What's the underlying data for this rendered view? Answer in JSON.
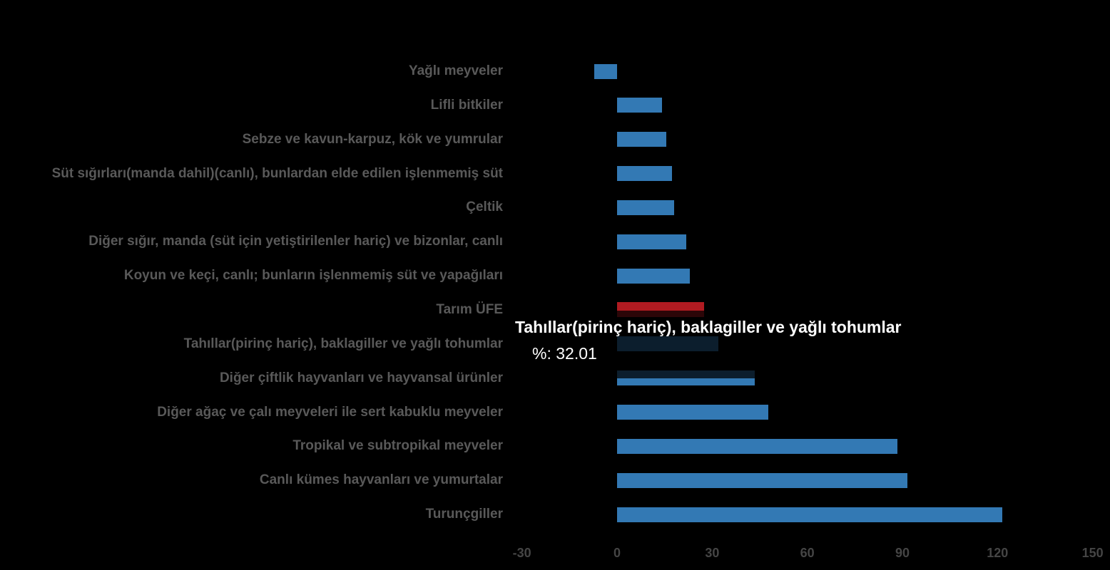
{
  "chart_data": {
    "type": "bar",
    "orientation": "horizontal",
    "title": "",
    "xlabel": "",
    "ylabel": "",
    "xlim": [
      -30,
      150
    ],
    "x_ticks": [
      "-30",
      "0",
      "30",
      "60",
      "90",
      "120",
      "150"
    ],
    "x_tick_values": [
      -30,
      0,
      30,
      60,
      90,
      120,
      150
    ],
    "grid": false,
    "legend": false,
    "categories": [
      "Yağlı meyveler",
      "Lifli bitkiler",
      "Sebze ve kavun-karpuz, kök ve yumrular",
      "Süt sığırları(manda dahil)(canlı), bunlardan elde edilen işlenmemiş süt",
      "Çeltik",
      "Diğer sığır, manda (süt için yetiştirilenler hariç) ve bizonlar, canlı",
      "Koyun ve keçi, canlı; bunların işlenmemiş süt ve yapağıları",
      "Tarım ÜFE",
      "Tahıllar(pirinç hariç), baklagiller ve yağlı tohumlar",
      "Diğer çiftlik hayvanları ve hayvansal ürünler",
      "Diğer ağaç ve çalı meyveleri ile sert kabuklu meyveler",
      "Tropikal ve subtropikal meyveler",
      "Canlı kümes hayvanları ve yumurtalar",
      "Turunçgiller"
    ],
    "values": [
      -7.1,
      14.1,
      15.6,
      17.4,
      17.9,
      21.9,
      23.0,
      27.5,
      32.01,
      43.4,
      47.7,
      88.4,
      91.6,
      121.5
    ],
    "bar_colors": [
      "#3379b4",
      "#3379b4",
      "#3379b4",
      "#3379b4",
      "#3379b4",
      "#3379b4",
      "#3379b4",
      "#b01b21",
      "#3379b4",
      "#3379b4",
      "#3379b4",
      "#3379b4",
      "#3379b4",
      "#3379b4"
    ],
    "highlighted_category_index": 8
  },
  "tooltip": {
    "title": "Tahıllar(pirinç hariç), baklagiller ve yağlı tohumlar",
    "value_label": "%: 32.01",
    "marker_color": "#3379b4"
  },
  "colors": {
    "background": "#000000",
    "bar_default": "#3379b4",
    "bar_reference": "#b01b21",
    "category_label": "#595959",
    "tick_label": "#454545",
    "tooltip_background": "rgba(0,0,0,0.75)",
    "tooltip_text": "#ffffff"
  }
}
